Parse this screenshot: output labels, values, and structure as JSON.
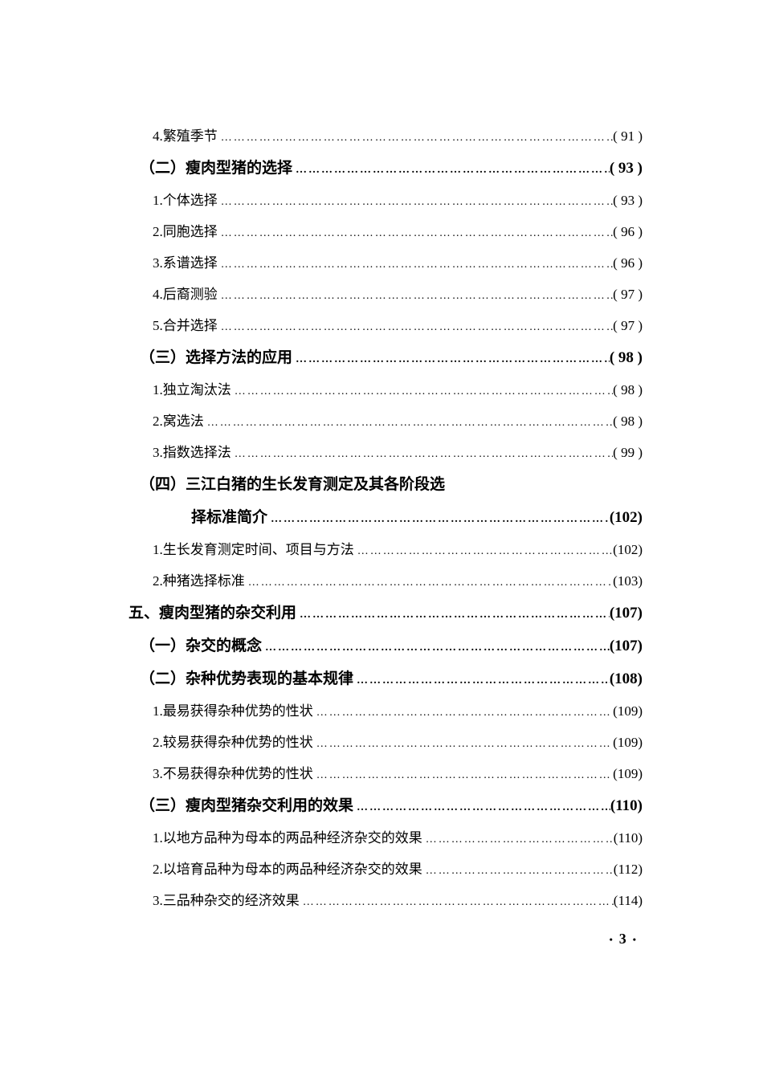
{
  "entries": [
    {
      "level": "sub",
      "label": "4.繁殖季节",
      "page": "( 91 )"
    },
    {
      "level": "sec",
      "label": "（二）瘦肉型猪的选择",
      "page": "( 93 )"
    },
    {
      "level": "sub",
      "label": "1.个体选择",
      "page": "( 93 )"
    },
    {
      "level": "sub",
      "label": "2.同胞选择",
      "page": "( 96 )"
    },
    {
      "level": "sub",
      "label": "3.系谱选择",
      "page": "( 96 )"
    },
    {
      "level": "sub",
      "label": "4.后裔测验",
      "page": "( 97 )"
    },
    {
      "level": "sub",
      "label": "5.合并选择",
      "page": "( 97 )"
    },
    {
      "level": "sec",
      "label": "（三）选择方法的应用",
      "page": "( 98 )"
    },
    {
      "level": "sub",
      "label": "1.独立淘汰法",
      "page": "( 98 )"
    },
    {
      "level": "sub",
      "label": "2.窝选法",
      "page": "( 98 )"
    },
    {
      "level": "sub",
      "label": "3.指数选择法",
      "page": "( 99 )"
    },
    {
      "level": "sec",
      "label": "（四）三江白猪的生长发育测定及其各阶段选",
      "noleader": true
    },
    {
      "level": "cont",
      "label": "择标准简介",
      "page": "(102)"
    },
    {
      "level": "sub",
      "label": "1.生长发育测定时间、项目与方法",
      "page": "(102)"
    },
    {
      "level": "sub",
      "label": "2.种猪选择标准",
      "page": "(103)"
    },
    {
      "level": "chap",
      "label": "五、瘦肉型猪的杂交利用",
      "page": "(107)"
    },
    {
      "level": "sec",
      "label": "（一）杂交的概念",
      "page": "(107)"
    },
    {
      "level": "sec",
      "label": "（二）杂种优势表现的基本规律",
      "page": "(108)"
    },
    {
      "level": "sub",
      "label": "1.最易获得杂种优势的性状",
      "page": "(109)"
    },
    {
      "level": "sub",
      "label": "2.较易获得杂种优势的性状",
      "page": "(109)"
    },
    {
      "level": "sub",
      "label": "3.不易获得杂种优势的性状",
      "page": "(109)"
    },
    {
      "level": "sec",
      "label": "（三）瘦肉型猪杂交利用的效果",
      "page": "(110)"
    },
    {
      "level": "sub",
      "label": "1.以地方品种为母本的两品种经济杂交的效果",
      "page": "(110)"
    },
    {
      "level": "sub",
      "label": "2.以培育品种为母本的两品种经济杂交的效果",
      "page": "(112)"
    },
    {
      "level": "sub",
      "label": "3.三品种杂交的经济效果",
      "page": "(114)"
    }
  ],
  "pageNumber": "3"
}
